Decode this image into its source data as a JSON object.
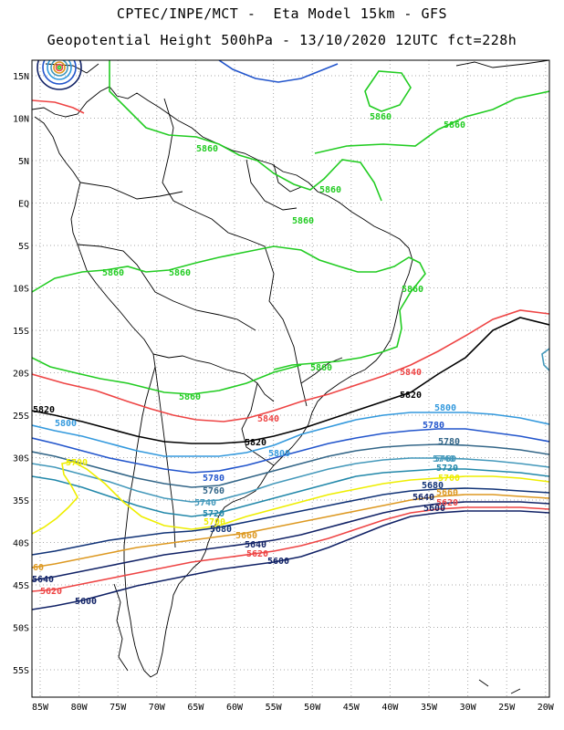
{
  "header": {
    "line1": "CPTEC/INPE/MCT -  Eta Model 15km - GFS",
    "line2": "Geopotential Height 500hPa - 13/10/2020 12UTC fct=228h"
  },
  "axes": {
    "lat_labels": [
      "15N",
      "10N",
      "5N",
      "EQ",
      "5S",
      "10S",
      "15S",
      "20S",
      "25S",
      "30S",
      "35S",
      "40S",
      "45S",
      "50S",
      "55S"
    ],
    "lon_labels": [
      "85W",
      "80W",
      "75W",
      "70W",
      "65W",
      "60W",
      "55W",
      "50W",
      "45W",
      "40W",
      "35W",
      "30W",
      "25W",
      "20W"
    ],
    "grid": "dotted"
  },
  "colors": {
    "c5860": "#22cc22",
    "c5840": "#ee4444",
    "c5820": "#000000",
    "c5800": "#3399dd",
    "c5780": "#2255cc",
    "c5760": "#336688",
    "c5740": "#4499bb",
    "c5720": "#2288aa",
    "c5700": "#eeee00",
    "c5680": "#113377",
    "c5660": "#dd9922",
    "c5620": "#ee4444",
    "c5600": "#112266"
  },
  "contour_labels": {
    "l5860a": "5860",
    "l5860b": "5860",
    "l5860c": "5860",
    "l5860d": "5860",
    "l5860e": "5860",
    "l5860f": "5860",
    "l5860g": "5860",
    "l5860h": "5860",
    "l5860i": "5860",
    "l5860j": "5860",
    "l5840a": "5840",
    "l5840b": "5840",
    "l5820a": "5820",
    "l5820b": "5820",
    "l5820c": "5820",
    "l5800a": "5800",
    "l5800b": "5800",
    "l5800c": "5800",
    "l5780a": "5780",
    "l5780b": "5780",
    "l5780c": "5780",
    "l5760a": "5760",
    "l5760b": "5760",
    "l5740a": "5740",
    "l5740b": "5740",
    "l5720a": "5720",
    "l5720b": "5720",
    "l5700a": "5700",
    "l5700b": "5700",
    "l5700c": "5700",
    "l5680a": "5680",
    "l5680b": "5680",
    "l5660a": "5660",
    "l5660b": "5660",
    "l5640a": "5640",
    "l5640b": "5640",
    "l5640c": "5640",
    "l5620a": "5620",
    "l5620b": "5620",
    "l5620c": "5620",
    "l5600a": "5600",
    "l5600b": "5600",
    "l5600c": "5600",
    "l60": "60"
  }
}
